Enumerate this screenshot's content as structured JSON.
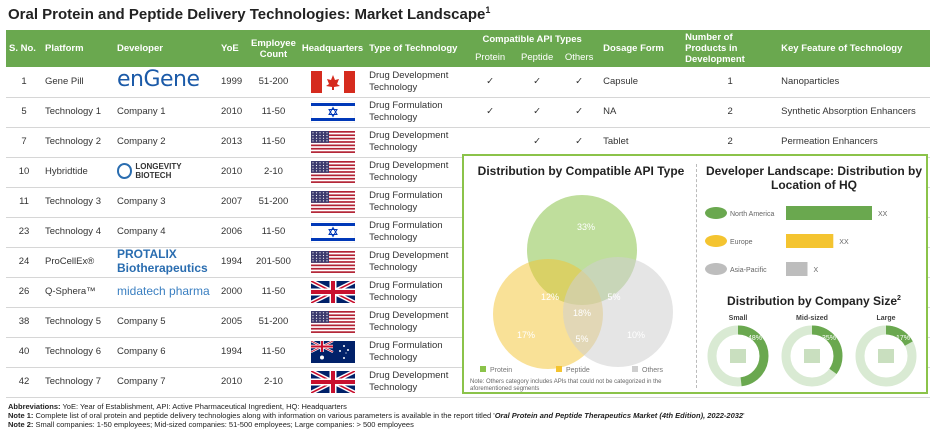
{
  "title": "Oral Protein and Peptide Delivery Technologies: Market Landscape",
  "title_sup": "1",
  "headers": {
    "sno": "S. No.",
    "platform": "Platform",
    "developer": "Developer",
    "yoe": "YoE",
    "employee_count": "Employee Count",
    "headquarters": "Headquarters",
    "tech_type": "Type of Technology",
    "api_types": "Compatible API Types",
    "protein": "Protein",
    "peptide": "Peptide",
    "others": "Others",
    "dosage_form": "Dosage Form",
    "num_products": "Number of Products in Development",
    "key_feature": "Key Feature of Technology"
  },
  "rows": [
    {
      "sno": "1",
      "platform": "Gene Pill",
      "developer": "enGene",
      "yoe": "1999",
      "emp": "51-200",
      "flag": "canada",
      "tech": "Drug Development Technology",
      "protein": "✓",
      "peptide": "✓",
      "others": "✓",
      "dosage": "Capsule",
      "num": "1",
      "feature": "Nanoparticles"
    },
    {
      "sno": "5",
      "platform": "Technology 1",
      "developer": "Company 1",
      "yoe": "2010",
      "emp": "11-50",
      "flag": "israel",
      "tech": "Drug Formulation Technology",
      "protein": "✓",
      "peptide": "✓",
      "others": "✓",
      "dosage": "NA",
      "num": "2",
      "feature": "Synthetic Absorption Enhancers"
    },
    {
      "sno": "7",
      "platform": "Technology 2",
      "developer": "Company 2",
      "yoe": "2013",
      "emp": "11-50",
      "flag": "usa",
      "tech": "Drug Development Technology",
      "protein": "",
      "peptide": "✓",
      "others": "✓",
      "dosage": "Tablet",
      "num": "2",
      "feature": "Permeation Enhancers"
    },
    {
      "sno": "10",
      "platform": "Hybridtide",
      "developer": "LONGEVITY BIOTECH",
      "yoe": "2010",
      "emp": "2-10",
      "flag": "usa",
      "tech": "Drug Development Technology",
      "protein": "",
      "peptide": "",
      "others": "",
      "dosage": "",
      "num": "",
      "feature": ""
    },
    {
      "sno": "11",
      "platform": "Technology 3",
      "developer": "Company 3",
      "yoe": "2007",
      "emp": "51-200",
      "flag": "usa",
      "tech": "Drug Formulation Technology",
      "protein": "",
      "peptide": "",
      "others": "",
      "dosage": "",
      "num": "",
      "feature": ""
    },
    {
      "sno": "23",
      "platform": "Technology 4",
      "developer": "Company 4",
      "yoe": "2006",
      "emp": "11-50",
      "flag": "israel",
      "tech": "Drug Formulation Technology",
      "protein": "",
      "peptide": "",
      "others": "",
      "dosage": "",
      "num": "",
      "feature": ""
    },
    {
      "sno": "24",
      "platform": "ProCellEx®",
      "developer": "PROTALIX Biotherapeutics",
      "yoe": "1994",
      "emp": "201-500",
      "flag": "usa",
      "tech": "Drug Development Technology",
      "protein": "",
      "peptide": "",
      "others": "",
      "dosage": "",
      "num": "",
      "feature": ""
    },
    {
      "sno": "26",
      "platform": "Q-Sphera™",
      "developer": "midatech pharma",
      "yoe": "2000",
      "emp": "11-50",
      "flag": "uk",
      "tech": "Drug Formulation Technology",
      "protein": "",
      "peptide": "",
      "others": "",
      "dosage": "",
      "num": "",
      "feature": ""
    },
    {
      "sno": "38",
      "platform": "Technology 5",
      "developer": "Company 5",
      "yoe": "2005",
      "emp": "51-200",
      "flag": "usa",
      "tech": "Drug Development Technology",
      "protein": "",
      "peptide": "",
      "others": "",
      "dosage": "",
      "num": "",
      "feature": ""
    },
    {
      "sno": "40",
      "platform": "Technology 6",
      "developer": "Company 6",
      "yoe": "1994",
      "emp": "11-50",
      "flag": "australia",
      "tech": "Drug Formulation Technology",
      "protein": "",
      "peptide": "",
      "others": "",
      "dosage": "",
      "num": "",
      "feature": ""
    },
    {
      "sno": "42",
      "platform": "Technology 7",
      "developer": "Company 7",
      "yoe": "2010",
      "emp": "2-10",
      "flag": "uk",
      "tech": "Drug Development Technology",
      "protein": "",
      "peptide": "",
      "others": "",
      "dosage": "",
      "num": "",
      "feature": ""
    }
  ],
  "panel": {
    "venn_title": "Distribution by Compatible API Type",
    "venn": {
      "protein_only": "17%",
      "peptide_only": "33%",
      "others_only": "10%",
      "protein_peptide": "12%",
      "peptide_others": "5%",
      "protein_others": "5%",
      "all_three": "18%"
    },
    "legend": [
      "Protein",
      "Peptide",
      "Others"
    ],
    "colors": {
      "protein": "#f4c430",
      "peptide": "#8bc34a",
      "others": "#cfcfcf"
    },
    "note": "Note: Others category includes APIs that could not be categorized in the aforementioned segments",
    "dev_title": "Developer Landscape: Distribution by Location of HQ",
    "regions": [
      {
        "name": "North America",
        "label": "XX",
        "value": 1.0,
        "color": "#6aa84f"
      },
      {
        "name": "Europe",
        "label": "XX",
        "value": 0.55,
        "color": "#f4c430"
      },
      {
        "name": "Asia-Pacific",
        "label": "X",
        "value": 0.25,
        "color": "#bdbdbd"
      }
    ],
    "size_title": "Distribution by Company Size",
    "size_title_sup": "2",
    "sizes": [
      {
        "name": "Small",
        "pct": "48%",
        "value": 0.48
      },
      {
        "name": "Mid-sized",
        "pct": "35%",
        "value": 0.35
      },
      {
        "name": "Large",
        "pct": "17%",
        "value": 0.17
      }
    ]
  },
  "footer": {
    "abbr_label": "Abbreviations:",
    "abbr": " YoE: Year of Establishment, API: Active Pharmaceutical Ingredient, HQ: Headquarters",
    "note1_label": "Note 1:",
    "note1": " Complete list of oral protein and peptide delivery technologies along with information on various parameters is available in the report titled '",
    "note1_title": "Oral Protein and Peptide Therapeutics Market (4th Edition), 2022-2032",
    "note1_end": "'",
    "note2_label": "Note 2:",
    "note2": " Small companies: 1-50 employees; Mid-sized companies: 51-500 employees; Large companies: > 500 employees"
  }
}
